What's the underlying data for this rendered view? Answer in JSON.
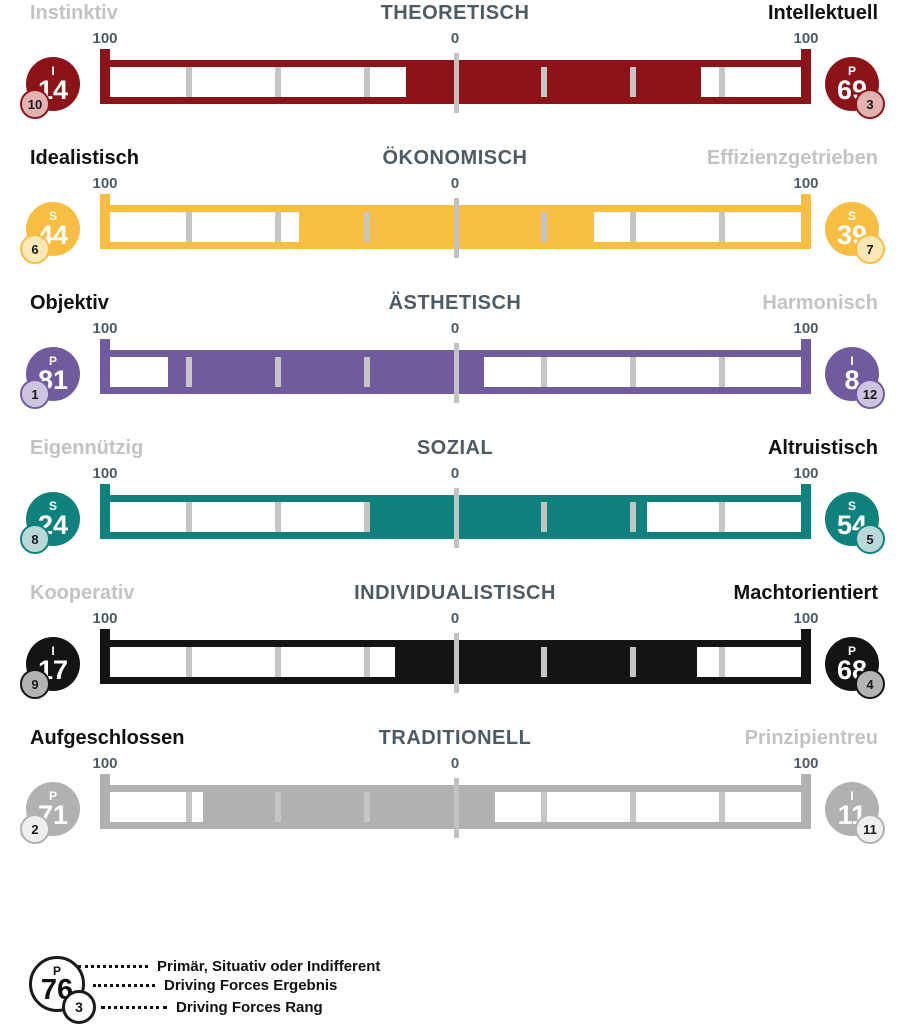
{
  "legend": {
    "circle_letter": "P",
    "circle_value": "76",
    "circle_rank": "3",
    "items": [
      {
        "label": "Primär, Situativ oder Indifferent"
      },
      {
        "label": "Driving Forces Ergebnis"
      },
      {
        "label": "Driving Forces Rang"
      }
    ]
  },
  "chart_data": {
    "type": "bar",
    "subtype": "bipolar_driving_forces_scales",
    "axis": {
      "left_label": "100",
      "center_label": "0",
      "right_label": "100",
      "range_per_side": [
        0,
        100
      ],
      "tick_interval": 25,
      "note": "each side fills from center 0 outward toward 100"
    },
    "scales": [
      {
        "title": "THEORETISCH",
        "color": "#8c1418",
        "rank_bg": "#e2b2b1",
        "left": {
          "label": "Instinktiv",
          "emphasis": "muted",
          "letter": "I",
          "score": 14,
          "rank": 10
        },
        "right": {
          "label": "Intellektuell",
          "emphasis": "strong",
          "letter": "P",
          "score": 69,
          "rank": 3
        }
      },
      {
        "title": "ÖKONOMISCH",
        "color": "#f8bd43",
        "rank_bg": "#fbe8b7",
        "left": {
          "label": "Idealistisch",
          "emphasis": "strong",
          "letter": "S",
          "score": 44,
          "rank": 6
        },
        "right": {
          "label": "Effizienzgetrieben",
          "emphasis": "muted",
          "letter": "S",
          "score": 39,
          "rank": 7
        }
      },
      {
        "title": "ÄSTHETISCH",
        "color": "#6f5b9e",
        "rank_bg": "#cdc5e0",
        "left": {
          "label": "Objektiv",
          "emphasis": "strong",
          "letter": "P",
          "score": 81,
          "rank": 1
        },
        "right": {
          "label": "Harmonisch",
          "emphasis": "muted",
          "letter": "I",
          "score": 8,
          "rank": 12
        }
      },
      {
        "title": "SOZIAL",
        "color": "#10827e",
        "rank_bg": "#bad8d6",
        "left": {
          "label": "Eigennützig",
          "emphasis": "muted",
          "letter": "S",
          "score": 24,
          "rank": 8
        },
        "right": {
          "label": "Altruistisch",
          "emphasis": "strong",
          "letter": "S",
          "score": 54,
          "rank": 5
        }
      },
      {
        "title": "INDIVIDUALISTISCH",
        "color": "#141414",
        "rank_bg": "#b3b3b3",
        "left": {
          "label": "Kooperativ",
          "emphasis": "muted",
          "letter": "I",
          "score": 17,
          "rank": 9
        },
        "right": {
          "label": "Machtorientiert",
          "emphasis": "strong",
          "letter": "P",
          "score": 68,
          "rank": 4
        }
      },
      {
        "title": "TRADITIONELL",
        "color": "#b3b1af",
        "rank_bg": "#efefef",
        "left": {
          "label": "Aufgeschlossen",
          "emphasis": "strong",
          "letter": "P",
          "score": 71,
          "rank": 2
        },
        "right": {
          "label": "Prinzipientreu",
          "emphasis": "muted",
          "letter": "I",
          "score": 11,
          "rank": 11
        }
      }
    ]
  }
}
